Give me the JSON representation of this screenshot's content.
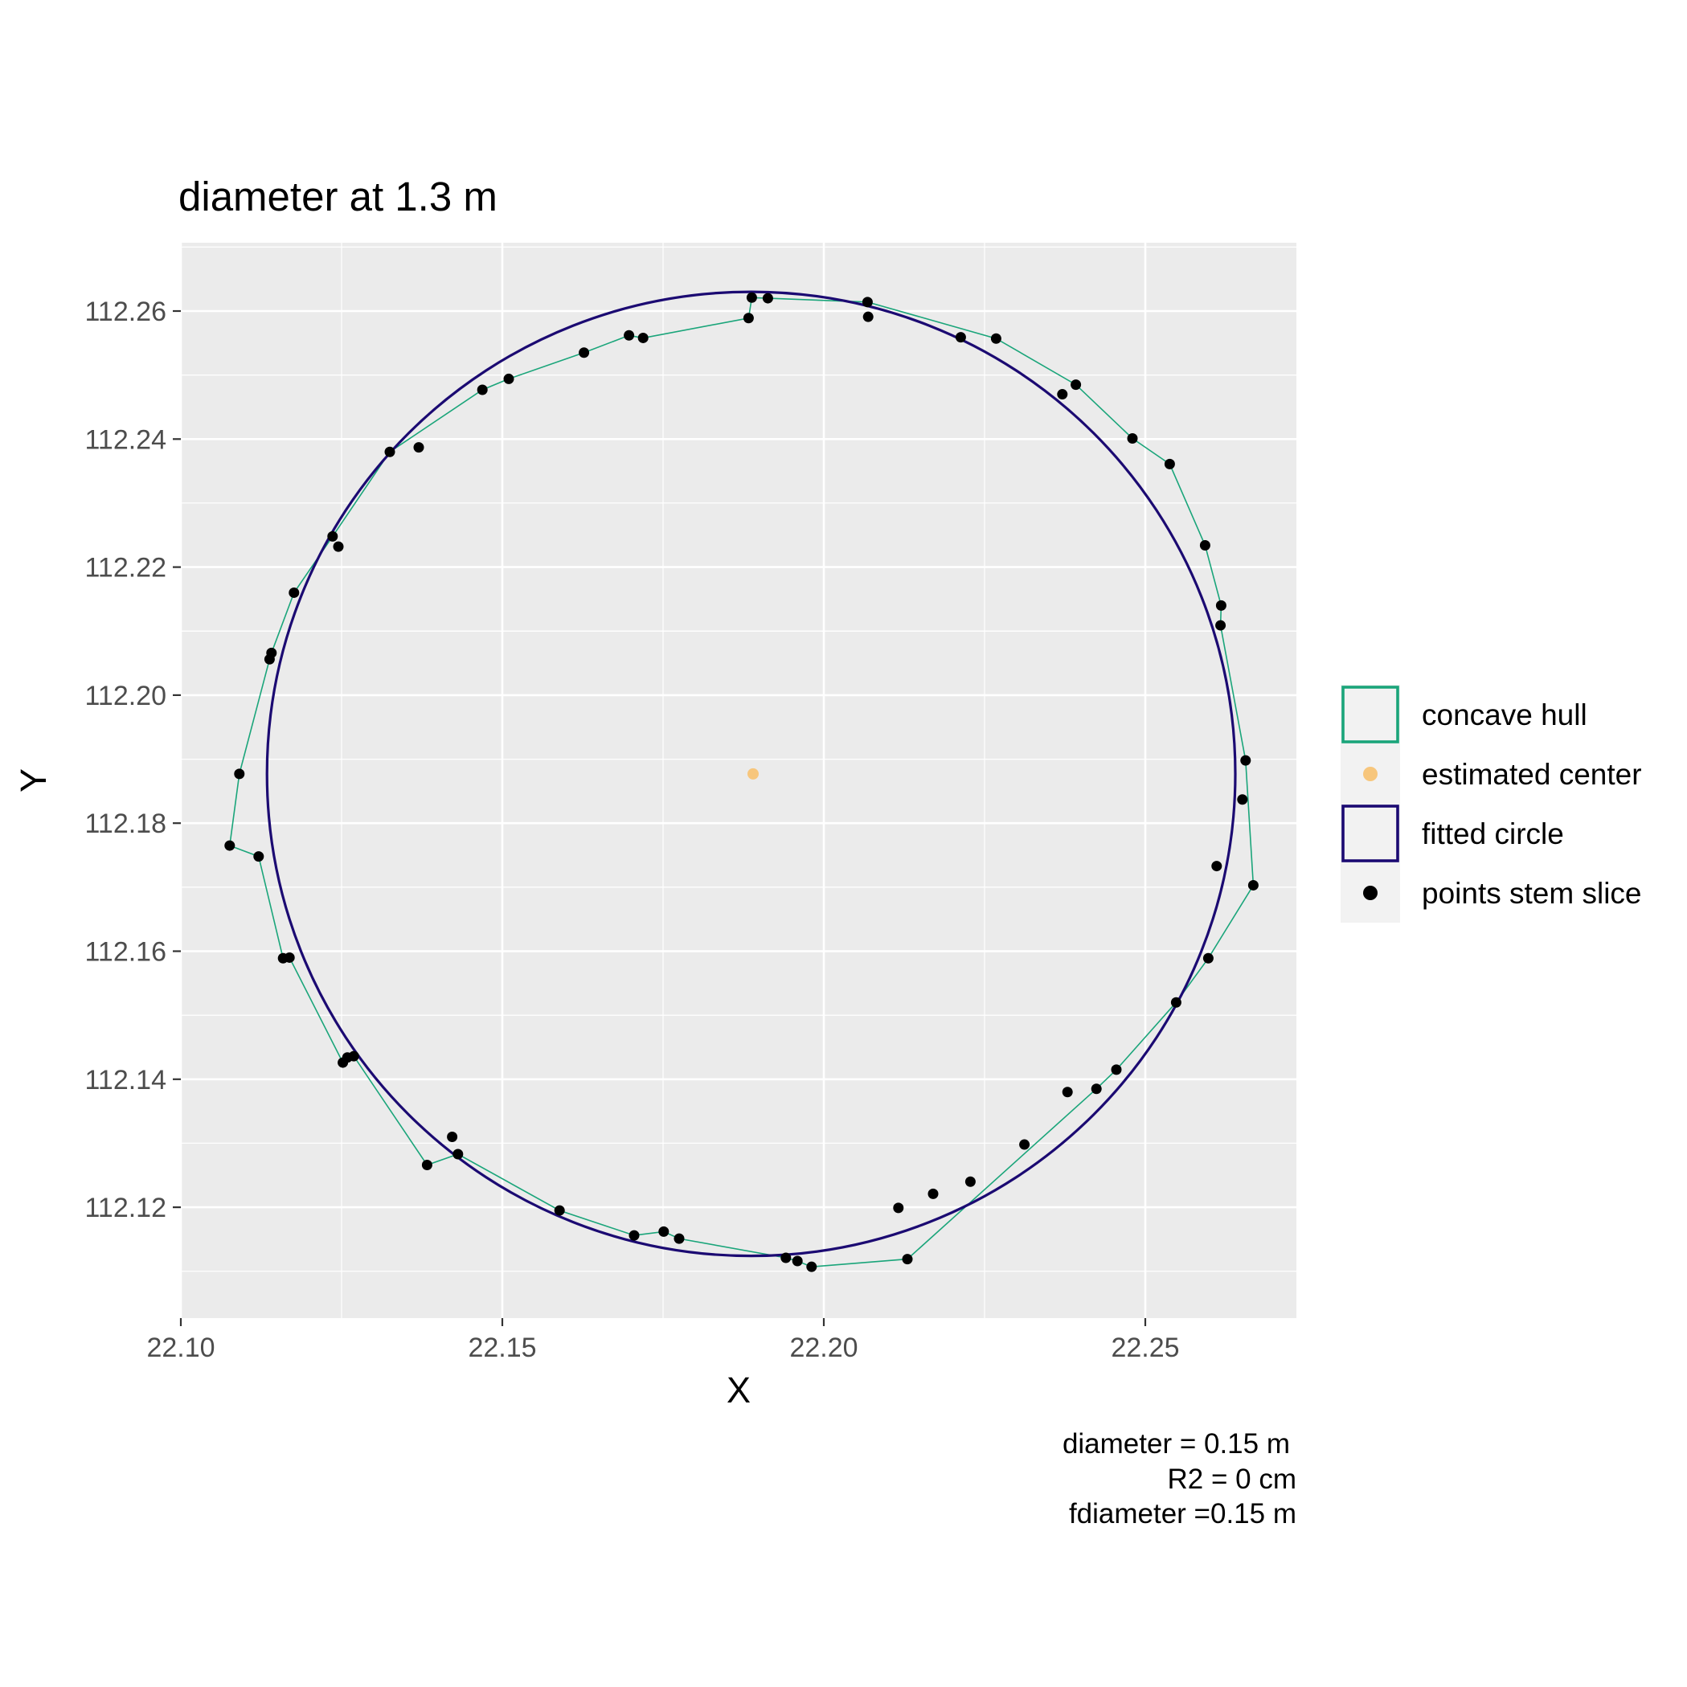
{
  "chart_data": {
    "type": "scatter",
    "title": "diameter at 1.3 m",
    "xlabel": "X",
    "ylabel": "Y",
    "xlim": [
      22.1,
      22.275
    ],
    "ylim": [
      112.103,
      112.271
    ],
    "x_ticks": [
      22.1,
      22.15,
      22.2,
      22.25
    ],
    "x_tick_labels": [
      "22.10",
      "22.15",
      "22.20",
      "22.25"
    ],
    "y_ticks": [
      112.12,
      112.14,
      112.16,
      112.18,
      112.2,
      112.22,
      112.24,
      112.26
    ],
    "y_tick_labels": [
      "112.12",
      "112.14",
      "112.16",
      "112.18",
      "112.20",
      "112.22",
      "112.24",
      "112.26"
    ],
    "grid": true,
    "legend_position": "right",
    "legend": [
      {
        "label": "concave hull",
        "kind": "hull-box",
        "color": "#1aa57a"
      },
      {
        "label": "estimated center",
        "kind": "dot",
        "color": "#f7c67c"
      },
      {
        "label": "fitted circle",
        "kind": "circle-box",
        "color": "#1b0a72"
      },
      {
        "label": "points stem slice",
        "kind": "dot",
        "color": "#000000"
      }
    ],
    "caption": [
      "diameter = 0.15 m",
      "R2 = 0 cm",
      "fdiameter =0.15 m"
    ],
    "center": {
      "x": 22.189,
      "y": 112.1877
    },
    "fitted_circle": {
      "cx": 22.1887,
      "cy": 112.1877,
      "r": 0.0753,
      "color": "#1b0a72"
    },
    "hull_color": "#1aa57a",
    "points": [
      [
        22.1888,
        112.2621
      ],
      [
        22.1913,
        112.262
      ],
      [
        22.2068,
        112.2614
      ],
      [
        22.1883,
        112.2589
      ],
      [
        22.2069,
        112.2591
      ],
      [
        22.2213,
        112.2559
      ],
      [
        22.2268,
        112.2557
      ],
      [
        22.1697,
        112.2562
      ],
      [
        22.1719,
        112.2558
      ],
      [
        22.1627,
        112.2535
      ],
      [
        22.151,
        112.2494
      ],
      [
        22.1469,
        112.2477
      ],
      [
        22.2371,
        112.247
      ],
      [
        22.2392,
        112.2485
      ],
      [
        22.1325,
        112.238
      ],
      [
        22.137,
        112.2387
      ],
      [
        22.248,
        112.2401
      ],
      [
        22.2538,
        112.2361
      ],
      [
        22.1236,
        112.2248
      ],
      [
        22.1245,
        112.2232
      ],
      [
        22.2593,
        112.2234
      ],
      [
        22.1176,
        112.216
      ],
      [
        22.2618,
        112.214
      ],
      [
        22.2617,
        112.2109
      ],
      [
        22.1141,
        112.2066
      ],
      [
        22.1138,
        112.2056
      ],
      [
        22.2656,
        112.1898
      ],
      [
        22.1091,
        112.1877
      ],
      [
        22.2651,
        112.1837
      ],
      [
        22.1076,
        112.1765
      ],
      [
        22.1121,
        112.1748
      ],
      [
        22.2611,
        112.1733
      ],
      [
        22.2668,
        112.1703
      ],
      [
        22.1159,
        112.1589
      ],
      [
        22.1169,
        112.159
      ],
      [
        22.2598,
        112.1589
      ],
      [
        22.2548,
        112.152
      ],
      [
        22.1252,
        112.1426
      ],
      [
        22.1259,
        112.1434
      ],
      [
        22.1269,
        112.1436
      ],
      [
        22.2455,
        112.1415
      ],
      [
        22.2424,
        112.1385
      ],
      [
        22.2379,
        112.138
      ],
      [
        22.1422,
        112.131
      ],
      [
        22.2312,
        112.1298
      ],
      [
        22.1431,
        112.1283
      ],
      [
        22.1383,
        112.1266
      ],
      [
        22.2228,
        112.124
      ],
      [
        22.217,
        112.1221
      ],
      [
        22.2116,
        112.1199
      ],
      [
        22.1589,
        112.1195
      ],
      [
        22.1751,
        112.1162
      ],
      [
        22.1705,
        112.1156
      ],
      [
        22.1775,
        112.1151
      ],
      [
        22.213,
        112.1119
      ],
      [
        22.1941,
        112.1121
      ],
      [
        22.1959,
        112.1116
      ],
      [
        22.1981,
        112.1107
      ]
    ],
    "hull": [
      [
        22.1888,
        112.2621
      ],
      [
        22.1913,
        112.262
      ],
      [
        22.2068,
        112.2614
      ],
      [
        22.2268,
        112.2557
      ],
      [
        22.2392,
        112.2485
      ],
      [
        22.248,
        112.2401
      ],
      [
        22.2538,
        112.2361
      ],
      [
        22.2593,
        112.2234
      ],
      [
        22.2618,
        112.214
      ],
      [
        22.2617,
        112.2109
      ],
      [
        22.2656,
        112.1898
      ],
      [
        22.2668,
        112.1703
      ],
      [
        22.2598,
        112.1589
      ],
      [
        22.2548,
        112.152
      ],
      [
        22.2455,
        112.1415
      ],
      [
        22.2424,
        112.1385
      ],
      [
        22.213,
        112.1119
      ],
      [
        22.1981,
        112.1107
      ],
      [
        22.1959,
        112.1116
      ],
      [
        22.1941,
        112.1121
      ],
      [
        22.1775,
        112.1151
      ],
      [
        22.1751,
        112.1162
      ],
      [
        22.1705,
        112.1156
      ],
      [
        22.1589,
        112.1195
      ],
      [
        22.1431,
        112.1283
      ],
      [
        22.1383,
        112.1266
      ],
      [
        22.1269,
        112.1436
      ],
      [
        22.1259,
        112.1434
      ],
      [
        22.1252,
        112.1426
      ],
      [
        22.1169,
        112.159
      ],
      [
        22.1159,
        112.1589
      ],
      [
        22.1121,
        112.1748
      ],
      [
        22.1076,
        112.1765
      ],
      [
        22.1091,
        112.1877
      ],
      [
        22.1138,
        112.2056
      ],
      [
        22.1141,
        112.2066
      ],
      [
        22.1176,
        112.216
      ],
      [
        22.1236,
        112.2248
      ],
      [
        22.1325,
        112.238
      ],
      [
        22.1469,
        112.2477
      ],
      [
        22.151,
        112.2494
      ],
      [
        22.1627,
        112.2535
      ],
      [
        22.1697,
        112.2562
      ],
      [
        22.1719,
        112.2558
      ],
      [
        22.1883,
        112.2589
      ]
    ]
  }
}
